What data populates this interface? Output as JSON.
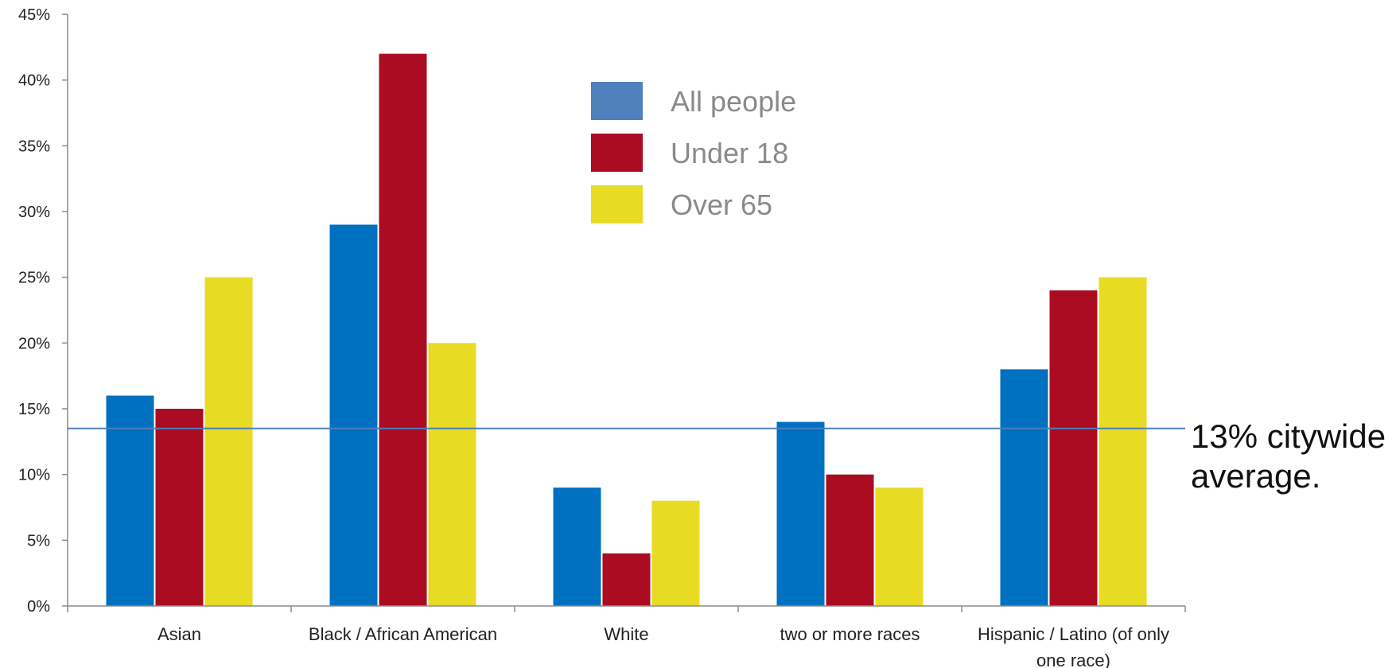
{
  "chart_data": {
    "type": "bar",
    "title": "",
    "xlabel": "",
    "ylabel": "",
    "ylim": [
      0,
      45
    ],
    "y_ticks": [
      "0%",
      "5%",
      "10%",
      "15%",
      "20%",
      "25%",
      "30%",
      "35%",
      "40%",
      "45%"
    ],
    "categories": [
      [
        "Asian"
      ],
      [
        "Black / African American"
      ],
      [
        "White"
      ],
      [
        "two or more races"
      ],
      [
        "Hispanic / Latino (of only",
        "one race)"
      ]
    ],
    "series": [
      {
        "name": "All people",
        "color": "#0070c0",
        "values": [
          16,
          29,
          9,
          14,
          18
        ]
      },
      {
        "name": "Under 18",
        "color": "#ac0c22",
        "values": [
          15,
          42,
          4,
          10,
          24
        ]
      },
      {
        "name": "Over 65",
        "color": "#e8db24",
        "values": [
          25,
          20,
          8,
          9,
          25
        ]
      }
    ],
    "legend": {
      "position": "top-center",
      "items": [
        {
          "label": "All people",
          "color": "#4f81bd"
        },
        {
          "label": "Under 18",
          "color": "#ac0c22"
        },
        {
          "label": "Over 65",
          "color": "#e8db24"
        }
      ]
    },
    "reference_line": {
      "value": 13.5,
      "color": "#4a7fc1",
      "label_lines": [
        "13% citywide",
        "average."
      ]
    },
    "grid": false
  }
}
